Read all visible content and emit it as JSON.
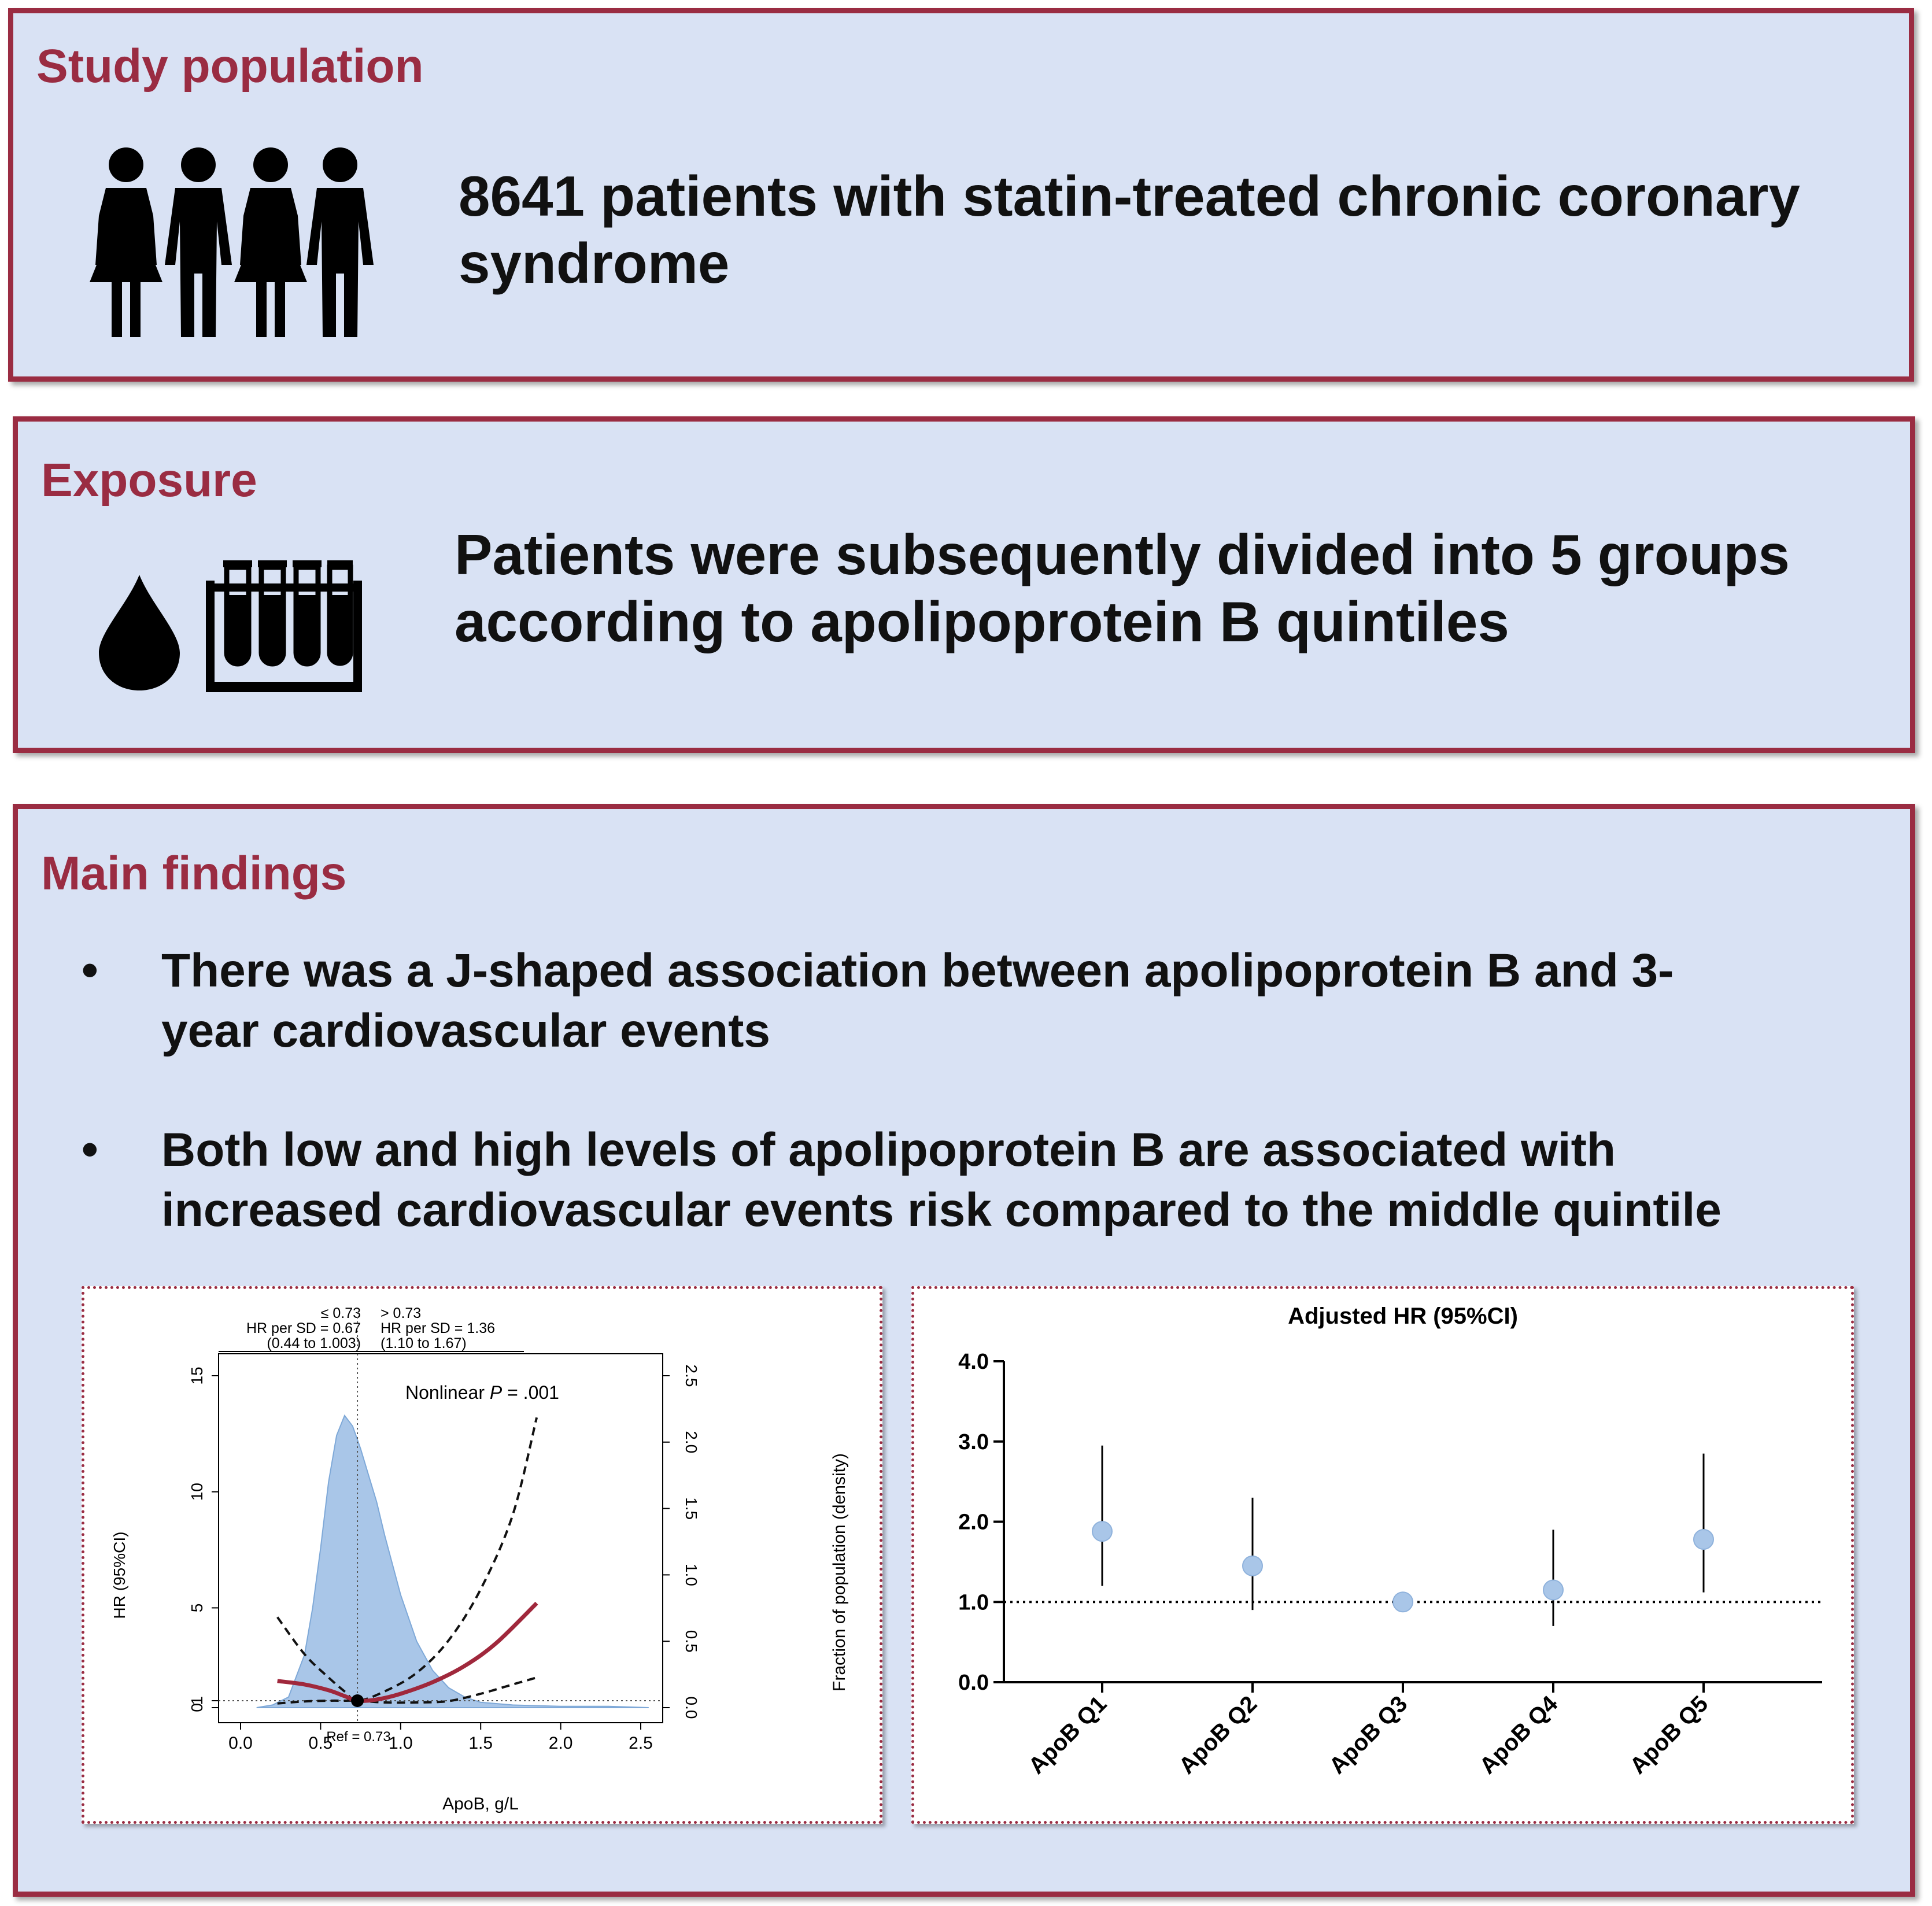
{
  "study": {
    "title": "Study population",
    "text_line1": "8641 patients with statin-treated chronic coronary",
    "text_line2": "syndrome",
    "icon": "people-group-icon"
  },
  "exposure": {
    "title": "Exposure",
    "text_line1": "Patients were subsequently divided into 5 groups",
    "text_line2": "according to apolipoprotein B quintiles",
    "icons": [
      "blood-drop-icon",
      "test-tubes-icon"
    ]
  },
  "findings": {
    "title": "Main findings",
    "bullet_char": "•",
    "bullets": [
      {
        "line1": "There was a J-shaped association between apolipoprotein B and 3-",
        "line2": "year cardiovascular events"
      },
      {
        "line1": "Both low and high levels of apolipoprotein B are associated with",
        "line2": "increased cardiovascular events risk compared to the middle quintile"
      }
    ]
  },
  "chart_data": [
    {
      "type": "line",
      "xlabel": "ApoB, g/L",
      "ylabel": "HR (95%CI)",
      "y2label": "Fraction of population (density)",
      "xticks": [
        "0.0",
        "0.5",
        "1.0",
        "1.5",
        "2.0",
        "2.5"
      ],
      "yticks": [
        "0",
        "1",
        "5",
        "10",
        "15"
      ],
      "y2ticks": [
        "0.0",
        "0.5",
        "1.0",
        "1.5",
        "2.0",
        "2.5"
      ],
      "xlim": [
        0,
        2.5
      ],
      "ylim": [
        0,
        15
      ],
      "y2lim": [
        0,
        2.5
      ],
      "annotation": "Nonlinear P = .001",
      "annotation_prefix": "Nonlinear ",
      "annotation_p": "P",
      "annotation_suffix": " = .001",
      "ref_label": "Ref = 0.73",
      "reference_x": 0.73,
      "reference_y": 1,
      "left_header": [
        "≤ 0.73",
        "HR per SD = 0.67",
        "(0.44 to 1.003)"
      ],
      "right_header": [
        "> 0.73",
        "HR per SD = 1.36",
        "(1.10 to 1.67)"
      ],
      "colors": {
        "hr": "#a0283c",
        "ci": "#111111",
        "density": "#a9c6e8"
      },
      "series": [
        {
          "key": "hr",
          "x": [
            0.23,
            0.4,
            0.55,
            0.65,
            0.73,
            0.85,
            1.0,
            1.2,
            1.4,
            1.6,
            1.85
          ],
          "values": [
            1.85,
            1.7,
            1.45,
            1.2,
            1.0,
            1.05,
            1.3,
            1.8,
            2.5,
            3.5,
            5.2
          ]
        },
        {
          "key": "ci_upper",
          "x": [
            0.23,
            0.4,
            0.55,
            0.65,
            0.73,
            0.9,
            1.1,
            1.3,
            1.5,
            1.7,
            1.85
          ],
          "values": [
            4.6,
            3.0,
            2.0,
            1.4,
            1.0,
            1.4,
            2.2,
            3.6,
            5.8,
            9.0,
            13.2
          ]
        },
        {
          "key": "ci_lower",
          "x": [
            0.23,
            0.4,
            0.55,
            0.65,
            0.73,
            0.9,
            1.1,
            1.3,
            1.5,
            1.7,
            1.85
          ],
          "values": [
            0.6,
            0.9,
            1.0,
            1.0,
            1.0,
            0.75,
            0.75,
            0.95,
            1.3,
            1.7,
            2.0
          ]
        },
        {
          "key": "density",
          "x": [
            0.1,
            0.2,
            0.3,
            0.4,
            0.45,
            0.5,
            0.55,
            0.6,
            0.65,
            0.7,
            0.75,
            0.8,
            0.85,
            0.9,
            1.0,
            1.1,
            1.2,
            1.3,
            1.4,
            1.5,
            1.7,
            2.0,
            2.3,
            2.55
          ],
          "values": [
            0.0,
            0.02,
            0.08,
            0.4,
            0.75,
            1.2,
            1.7,
            2.05,
            2.2,
            2.12,
            1.95,
            1.75,
            1.55,
            1.3,
            0.85,
            0.5,
            0.28,
            0.15,
            0.08,
            0.04,
            0.02,
            0.01,
            0.01,
            0.0
          ]
        }
      ]
    },
    {
      "type": "scatter",
      "title": "Adjusted HR (95%CI)",
      "categories": [
        "ApoB Q1",
        "ApoB Q2",
        "ApoB Q3",
        "ApoB Q4",
        "ApoB Q5"
      ],
      "values": [
        1.88,
        1.45,
        1.0,
        1.15,
        1.78
      ],
      "lower": [
        1.2,
        0.9,
        1.0,
        0.7,
        1.12
      ],
      "upper": [
        2.95,
        2.3,
        1.0,
        1.9,
        2.85
      ],
      "yticks": [
        "0.0",
        "1.0",
        "2.0",
        "3.0",
        "4.0"
      ],
      "ylim": [
        0,
        4
      ],
      "reference_y": 1,
      "colors": {
        "point": "#a9c6e8"
      }
    }
  ]
}
